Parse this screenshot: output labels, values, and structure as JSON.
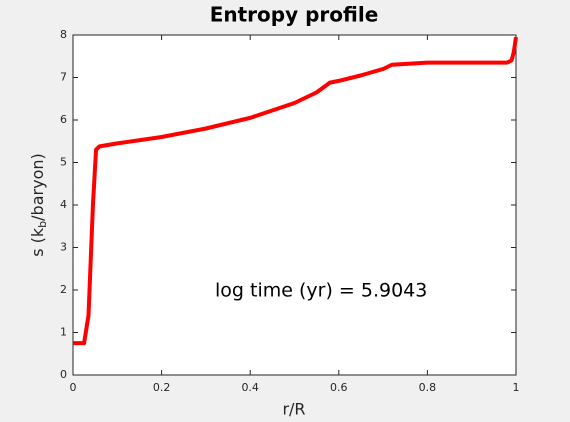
{
  "chart_data": {
    "type": "line",
    "title": "Entropy profile",
    "xlabel": "r/R",
    "ylabel": [
      "s (k",
      "b",
      "/baryon)"
    ],
    "annotation": "log time (yr) = 5.9043",
    "x": [
      0,
      0.025,
      0.035,
      0.045,
      0.052,
      0.06,
      0.1,
      0.2,
      0.3,
      0.4,
      0.5,
      0.55,
      0.58,
      0.6,
      0.65,
      0.7,
      0.72,
      0.8,
      0.9,
      0.98,
      0.99,
      0.995,
      1
    ],
    "series": [
      {
        "name": "s",
        "color": "#ff0000",
        "values": [
          0.75,
          0.75,
          1.4,
          4,
          5.3,
          5.38,
          5.45,
          5.6,
          5.8,
          6.05,
          6.4,
          6.65,
          6.88,
          6.92,
          7.05,
          7.2,
          7.3,
          7.35,
          7.35,
          7.35,
          7.4,
          7.6,
          7.95
        ]
      }
    ],
    "xlim": [
      0,
      1
    ],
    "xticks": [
      0,
      0.2,
      0.4,
      0.6,
      0.8,
      1
    ],
    "ylim": [
      0,
      8
    ],
    "yticks": [
      0,
      1,
      2,
      3,
      4,
      5,
      6,
      7,
      8
    ]
  }
}
